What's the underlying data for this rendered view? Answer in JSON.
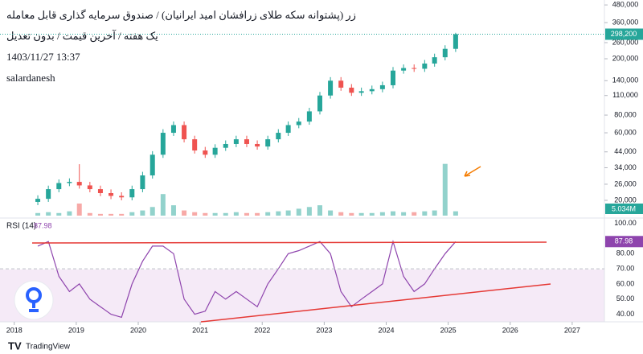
{
  "chart_data": [
    {
      "type": "candlestick",
      "title": "زر (پشتوانه سکه طلای زرافشان امید ایرانیان) / صندوق سرمایه گذاری قابل معامله",
      "subtitle": "یک هفته / آخرین قیمت / بدون تعدیل",
      "date_label": "1403/11/27 13:37",
      "author": "salardanesh",
      "x": [
        2018.38,
        2018.55,
        2018.72,
        2018.89,
        2019.05,
        2019.22,
        2019.39,
        2019.56,
        2019.73,
        2019.9,
        2020.07,
        2020.23,
        2020.4,
        2020.57,
        2020.74,
        2020.91,
        2021.08,
        2021.24,
        2021.41,
        2021.58,
        2021.75,
        2021.92,
        2022.09,
        2022.26,
        2022.42,
        2022.59,
        2022.76,
        2022.93,
        2023.1,
        2023.27,
        2023.44,
        2023.6,
        2023.77,
        2023.94,
        2024.11,
        2024.28,
        2024.45,
        2024.62,
        2024.78,
        2024.95,
        2025.12
      ],
      "open": [
        19500,
        20500,
        24000,
        26500,
        27000,
        25500,
        24000,
        22500,
        21500,
        21000,
        24000,
        30000,
        42000,
        60000,
        68000,
        54000,
        45000,
        42000,
        47000,
        50000,
        54000,
        50000,
        48000,
        54000,
        60000,
        68000,
        72000,
        85000,
        110000,
        140000,
        125000,
        115000,
        118000,
        122000,
        130000,
        165000,
        172000,
        170000,
        185000,
        205000,
        235000
      ],
      "high": [
        21700,
        25400,
        28100,
        28600,
        36000,
        27000,
        25400,
        23900,
        22800,
        25400,
        31800,
        44500,
        63600,
        72100,
        72100,
        57200,
        47700,
        49800,
        53000,
        57200,
        57200,
        53000,
        57200,
        63600,
        72100,
        76300,
        90100,
        116600,
        148400,
        148400,
        132500,
        125100,
        129300,
        137800,
        174900,
        182300,
        182300,
        196100,
        217300,
        249100,
        305000
      ],
      "low": [
        18500,
        19500,
        22800,
        25200,
        24200,
        22800,
        21400,
        20400,
        20000,
        20000,
        22800,
        28500,
        39900,
        57000,
        51300,
        42800,
        39900,
        39900,
        44700,
        47500,
        47500,
        45600,
        45600,
        51300,
        57000,
        64600,
        68400,
        80800,
        104500,
        118800,
        109300,
        109300,
        112100,
        115900,
        123500,
        156800,
        161500,
        161500,
        175800,
        194800,
        223300
      ],
      "close": [
        20500,
        24000,
        26500,
        27000,
        25500,
        24000,
        22500,
        21500,
        21000,
        24000,
        30000,
        42000,
        60000,
        68000,
        54000,
        45000,
        42000,
        47000,
        50000,
        54000,
        50000,
        48000,
        54000,
        60000,
        68000,
        72000,
        85000,
        110000,
        140000,
        125000,
        115000,
        118000,
        122000,
        130000,
        165000,
        172000,
        170000,
        185000,
        205000,
        235000,
        298200
      ],
      "volume": [
        3000000,
        4000000,
        3000000,
        5000000,
        14000000,
        3000000,
        2000000,
        2000000,
        2000000,
        4000000,
        6000000,
        10000000,
        25000000,
        12000000,
        6000000,
        4000000,
        3000000,
        3000000,
        3000000,
        4000000,
        3000000,
        3000000,
        4000000,
        5000000,
        6000000,
        8000000,
        10000000,
        12000000,
        6000000,
        4000000,
        3000000,
        3000000,
        3000000,
        4000000,
        5000000,
        4000000,
        4000000,
        5000000,
        6000000,
        60000000,
        5034000
      ],
      "vlim": [
        0,
        250000000
      ],
      "up_color": "#26a69a",
      "down_color": "#ef5350",
      "log_scale": true,
      "ylim": [
        15600,
        520000
      ],
      "yticks": [
        {
          "value": 480000,
          "label": "480,000"
        },
        {
          "value": 360000,
          "label": "360,000"
        },
        {
          "value": 260000,
          "label": "260,000"
        },
        {
          "value": 200000,
          "label": "200,000"
        },
        {
          "value": 140000,
          "label": "140,000"
        },
        {
          "value": 110000,
          "label": "110,000"
        },
        {
          "value": 80000,
          "label": "80,000"
        },
        {
          "value": 60000,
          "label": "60,000"
        },
        {
          "value": 44000,
          "label": "44,000"
        },
        {
          "value": 34000,
          "label": "34,000"
        },
        {
          "value": 26000,
          "label": "26,000"
        },
        {
          "value": 20000,
          "label": "20,000"
        }
      ],
      "xlim": [
        2017.77,
        2027.52
      ],
      "xticks": [
        2018,
        2019,
        2020,
        2021,
        2022,
        2023,
        2024,
        2025,
        2026,
        2027
      ],
      "last_price": {
        "value": 298200,
        "label": "298,200"
      },
      "last_volume": {
        "value": 5034000,
        "label": "5.034M"
      }
    },
    {
      "type": "line",
      "title": "RSI (14)",
      "color": "#8e44ad",
      "values": [
        85,
        88,
        65,
        55,
        60,
        50,
        45,
        40,
        38,
        60,
        75,
        85,
        85,
        80,
        50,
        40,
        42,
        55,
        50,
        55,
        50,
        45,
        60,
        70,
        80,
        82,
        85,
        88,
        80,
        55,
        45,
        50,
        55,
        60,
        88,
        65,
        55,
        60,
        70,
        80,
        87.98
      ],
      "ylim": [
        35,
        103
      ],
      "yticks": [
        {
          "value": 100,
          "label": "100.00"
        },
        {
          "value": 80,
          "label": "80.00"
        },
        {
          "value": 70,
          "label": "70.00"
        },
        {
          "value": 60,
          "label": "60.00"
        },
        {
          "value": 50,
          "label": "50.00"
        },
        {
          "value": 40,
          "label": "40.00"
        }
      ]
    }
  ],
  "footer": "TradingView"
}
